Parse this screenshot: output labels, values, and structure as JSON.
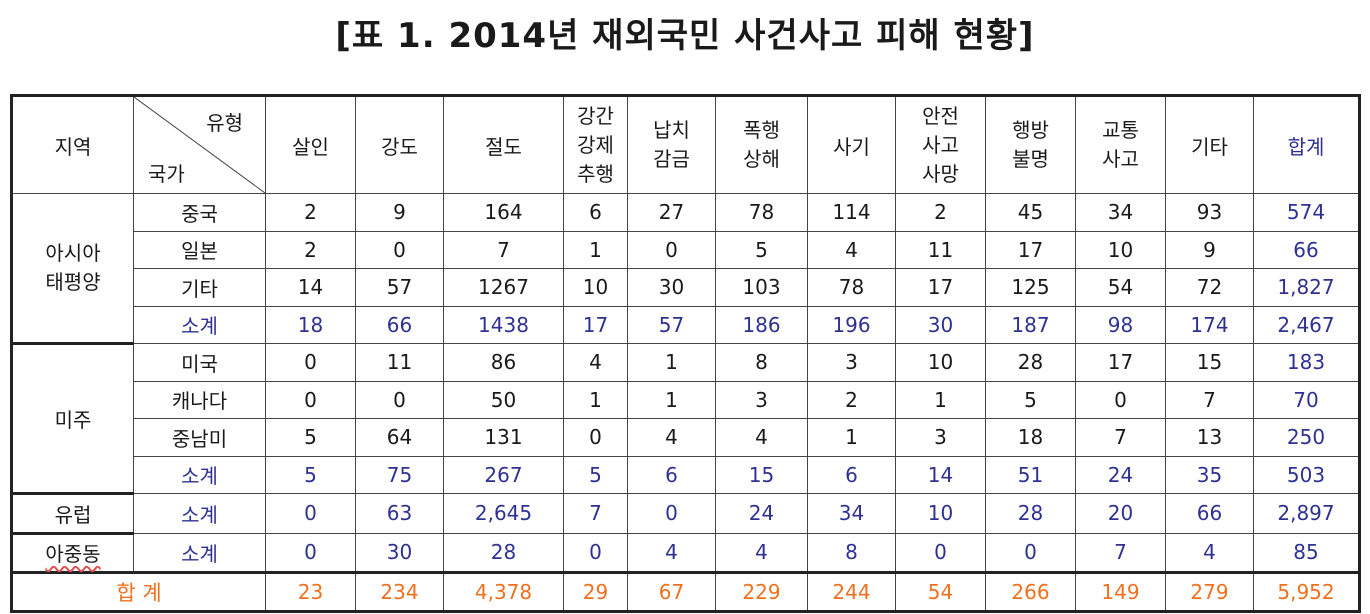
{
  "title": "[표 1. 2014년 재외국민 사건사고 피해 현황]",
  "header": {
    "region": "지역",
    "type_label": "유형",
    "country_label": "국가",
    "columns": [
      "살인",
      "강도",
      "절도",
      "강간\n강제\n추행",
      "납치\n감금",
      "폭행\n상해",
      "사기",
      "안전\n사고\n사망",
      "행방\n불명",
      "교통\n사고",
      "기타",
      "합계"
    ]
  },
  "regions": {
    "asia": "아시아\n태평양",
    "america": "미주",
    "europe": "유럽",
    "mideast": "아중동"
  },
  "rows": [
    {
      "country": "중국",
      "values": [
        "2",
        "9",
        "164",
        "6",
        "27",
        "78",
        "114",
        "2",
        "45",
        "34",
        "93"
      ],
      "total": "574"
    },
    {
      "country": "일본",
      "values": [
        "2",
        "0",
        "7",
        "1",
        "0",
        "5",
        "4",
        "11",
        "17",
        "10",
        "9"
      ],
      "total": "66"
    },
    {
      "country": "기타",
      "values": [
        "14",
        "57",
        "1267",
        "10",
        "30",
        "103",
        "78",
        "17",
        "125",
        "54",
        "72"
      ],
      "total": "1,827"
    },
    {
      "country": "소계",
      "values": [
        "18",
        "66",
        "1438",
        "17",
        "57",
        "186",
        "196",
        "30",
        "187",
        "98",
        "174"
      ],
      "total": "2,467"
    },
    {
      "country": "미국",
      "values": [
        "0",
        "11",
        "86",
        "4",
        "1",
        "8",
        "3",
        "10",
        "28",
        "17",
        "15"
      ],
      "total": "183"
    },
    {
      "country": "캐나다",
      "values": [
        "0",
        "0",
        "50",
        "1",
        "1",
        "3",
        "2",
        "1",
        "5",
        "0",
        "7"
      ],
      "total": "70"
    },
    {
      "country": "중남미",
      "values": [
        "5",
        "64",
        "131",
        "0",
        "4",
        "4",
        "1",
        "3",
        "18",
        "7",
        "13"
      ],
      "total": "250"
    },
    {
      "country": "소계",
      "values": [
        "5",
        "75",
        "267",
        "5",
        "6",
        "15",
        "6",
        "14",
        "51",
        "24",
        "35"
      ],
      "total": "503"
    },
    {
      "country": "소계",
      "values": [
        "0",
        "63",
        "2,645",
        "7",
        "0",
        "24",
        "34",
        "10",
        "28",
        "20",
        "66"
      ],
      "total": "2,897"
    },
    {
      "country": "소계",
      "values": [
        "0",
        "30",
        "28",
        "0",
        "4",
        "4",
        "8",
        "0",
        "0",
        "7",
        "4"
      ],
      "total": "85"
    }
  ],
  "grand_total": {
    "label": "합 계",
    "values": [
      "23",
      "234",
      "4,378",
      "29",
      "67",
      "229",
      "244",
      "54",
      "266",
      "149",
      "279"
    ],
    "total": "5,952"
  },
  "colors": {
    "subtotal": "#2e3192",
    "grand_total": "#f0701e",
    "text": "#1a1a1a"
  }
}
